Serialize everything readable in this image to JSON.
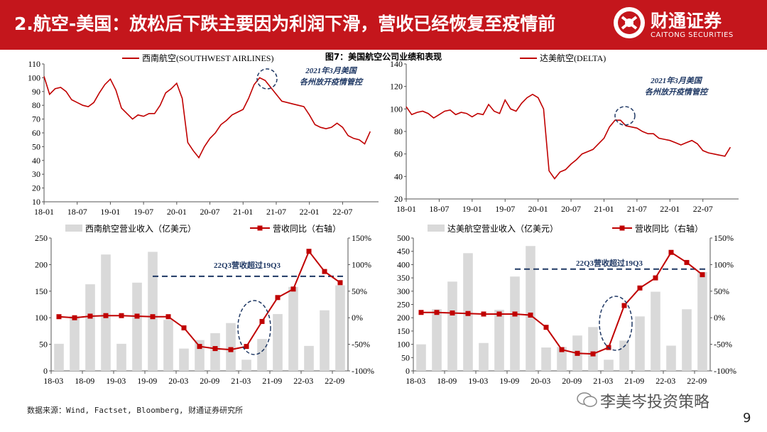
{
  "header": {
    "title": "2.航空-美国：放松后下跌主要因为利润下滑，营收已经恢复至疫情前",
    "logo_name": "财通证券",
    "logo_sub": "CAITONG SECURITIES",
    "bg_color": "#c4161c"
  },
  "figure_title": "图7：美国航空公司业绩和表现",
  "source": "数据来源：Wind, Factset, Bloomberg, 财通证券研究所",
  "watermark": "李美岑投资策略",
  "page_number": "9",
  "colors": {
    "line": "#c00000",
    "bar": "#d9d9d9",
    "annotation": "#1f3864"
  },
  "chart_data": [
    {
      "id": "sw-price",
      "type": "line",
      "legend": "西南航空(SOUTHWEST AIRLINES)",
      "ylim": [
        10,
        110
      ],
      "yticks": [
        "10",
        "20",
        "30",
        "40",
        "50",
        "60",
        "70",
        "80",
        "90",
        "100",
        "110"
      ],
      "xticks": [
        "18-01",
        "18-07",
        "19-01",
        "19-07",
        "20-01",
        "20-07",
        "21-01",
        "21-07",
        "22-01",
        "22-07"
      ],
      "annotation": "2021年3月美国各州放开疫情管控",
      "x": [
        "18-01",
        "18-02",
        "18-03",
        "18-04",
        "18-05",
        "18-06",
        "18-07",
        "18-08",
        "18-09",
        "18-10",
        "18-11",
        "18-12",
        "19-01",
        "19-02",
        "19-03",
        "19-04",
        "19-05",
        "19-06",
        "19-07",
        "19-08",
        "19-09",
        "19-10",
        "19-11",
        "19-12",
        "20-01",
        "20-02",
        "20-03",
        "20-04",
        "20-05",
        "20-06",
        "20-07",
        "20-08",
        "20-09",
        "20-10",
        "20-11",
        "20-12",
        "21-01",
        "21-02",
        "21-03",
        "21-04",
        "21-05",
        "21-06",
        "21-07",
        "21-08",
        "21-09",
        "21-10",
        "21-11",
        "21-12",
        "22-01",
        "22-02",
        "22-03",
        "22-04",
        "22-05",
        "22-06",
        "22-07",
        "22-08",
        "22-09",
        "22-10",
        "22-11",
        "22-12"
      ],
      "values": [
        101,
        88,
        92,
        93,
        90,
        84,
        82,
        80,
        79,
        82,
        89,
        95,
        99,
        91,
        78,
        74,
        70,
        73,
        72,
        74,
        74,
        80,
        89,
        92,
        96,
        85,
        53,
        47,
        42,
        50,
        56,
        60,
        66,
        69,
        73,
        75,
        77,
        85,
        95,
        100,
        98,
        93,
        88,
        83,
        82,
        81,
        80,
        79,
        73,
        66,
        64,
        63,
        64,
        67,
        64,
        58,
        56,
        55,
        52,
        61
      ]
    },
    {
      "id": "delta-price",
      "type": "line",
      "legend": "达美航空(DELTA)",
      "ylim": [
        20,
        140
      ],
      "yticks": [
        "20",
        "40",
        "60",
        "80",
        "100",
        "120",
        "140"
      ],
      "xticks": [
        "18-01",
        "18-07",
        "19-01",
        "19-07",
        "20-01",
        "20-07",
        "21-01",
        "21-07",
        "22-01",
        "22-07"
      ],
      "annotation": "2021年3月美国各州放开疫情管控",
      "x": [
        "18-01",
        "18-02",
        "18-03",
        "18-04",
        "18-05",
        "18-06",
        "18-07",
        "18-08",
        "18-09",
        "18-10",
        "18-11",
        "18-12",
        "19-01",
        "19-02",
        "19-03",
        "19-04",
        "19-05",
        "19-06",
        "19-07",
        "19-08",
        "19-09",
        "19-10",
        "19-11",
        "19-12",
        "20-01",
        "20-02",
        "20-03",
        "20-04",
        "20-05",
        "20-06",
        "20-07",
        "20-08",
        "20-09",
        "20-10",
        "20-11",
        "20-12",
        "21-01",
        "21-02",
        "21-03",
        "21-04",
        "21-05",
        "21-06",
        "21-07",
        "21-08",
        "21-09",
        "21-10",
        "21-11",
        "21-12",
        "22-01",
        "22-02",
        "22-03",
        "22-04",
        "22-05",
        "22-06",
        "22-07",
        "22-08",
        "22-09",
        "22-10",
        "22-11",
        "22-12"
      ],
      "values": [
        102,
        95,
        97,
        98,
        96,
        92,
        95,
        98,
        99,
        95,
        97,
        96,
        93,
        96,
        95,
        104,
        98,
        96,
        108,
        100,
        98,
        105,
        110,
        113,
        110,
        100,
        45,
        38,
        44,
        46,
        51,
        55,
        60,
        62,
        64,
        69,
        74,
        84,
        90,
        90,
        85,
        84,
        83,
        80,
        78,
        78,
        74,
        73,
        72,
        70,
        68,
        70,
        72,
        69,
        63,
        61,
        60,
        59,
        58,
        66
      ]
    },
    {
      "id": "sw-revenue",
      "type": "bar",
      "legend_bar": "西南航空营业收入（亿美元）",
      "legend_line": "营收同比（右轴）",
      "ylim": [
        0,
        250
      ],
      "y2lim": [
        -100,
        150
      ],
      "yticks": [
        "0",
        "50",
        "100",
        "150",
        "200",
        "250"
      ],
      "y2ticks": [
        "-100%",
        "-50%",
        "0%",
        "50%",
        "100%",
        "150%"
      ],
      "xticks": [
        "18-03",
        "18-09",
        "19-03",
        "19-09",
        "20-03",
        "20-09",
        "21-03",
        "21-09",
        "22-03",
        "22-09"
      ],
      "annotation": "22Q3营收超过19Q3",
      "reference_value": 178,
      "categories": [
        "18-03",
        "18-06",
        "18-09",
        "18-12",
        "19-03",
        "19-06",
        "19-09",
        "19-12",
        "20-03",
        "20-06",
        "20-09",
        "20-12",
        "21-03",
        "21-06",
        "21-09",
        "21-12",
        "22-03",
        "22-06",
        "22-09"
      ],
      "bars": [
        51,
        103,
        163,
        219,
        51,
        166,
        224,
        96,
        42,
        58,
        71,
        90,
        21,
        60,
        107,
        158,
        47,
        114,
        161
      ],
      "yoy_pct": [
        2,
        0,
        3,
        4,
        4,
        3,
        2,
        2,
        -19,
        -54,
        -58,
        -60,
        -54,
        -7,
        38,
        54,
        125,
        87,
        66
      ]
    },
    {
      "id": "delta-revenue",
      "type": "bar",
      "legend_bar": "达美航空营业收入（亿美元）",
      "legend_line": "营收同比（右轴）",
      "ylim": [
        0,
        500
      ],
      "y2lim": [
        -100,
        150
      ],
      "yticks": [
        "0",
        "50",
        "100",
        "150",
        "200",
        "250",
        "300",
        "350",
        "400",
        "450",
        "500"
      ],
      "y2ticks": [
        "-100%",
        "-50%",
        "0%",
        "50%",
        "100%",
        "150%"
      ],
      "xticks": [
        "18-03",
        "18-09",
        "19-03",
        "19-09",
        "20-03",
        "20-09",
        "21-03",
        "21-09",
        "22-03",
        "22-09"
      ],
      "annotation": "22Q3营收超过19Q3",
      "reference_value": 383,
      "categories": [
        "18-03",
        "18-06",
        "18-09",
        "18-12",
        "19-03",
        "19-06",
        "19-09",
        "19-12",
        "20-03",
        "20-06",
        "20-09",
        "20-12",
        "21-03",
        "21-06",
        "21-09",
        "21-12",
        "22-03",
        "22-06",
        "22-09"
      ],
      "bars": [
        100,
        232,
        336,
        443,
        105,
        230,
        355,
        470,
        88,
        90,
        133,
        165,
        42,
        114,
        205,
        298,
        95,
        232,
        372
      ],
      "yoy_pct": [
        10,
        10,
        9,
        8,
        7,
        7,
        7,
        5,
        -18,
        -60,
        -67,
        -68,
        -56,
        23,
        56,
        75,
        123,
        104,
        81
      ]
    }
  ]
}
